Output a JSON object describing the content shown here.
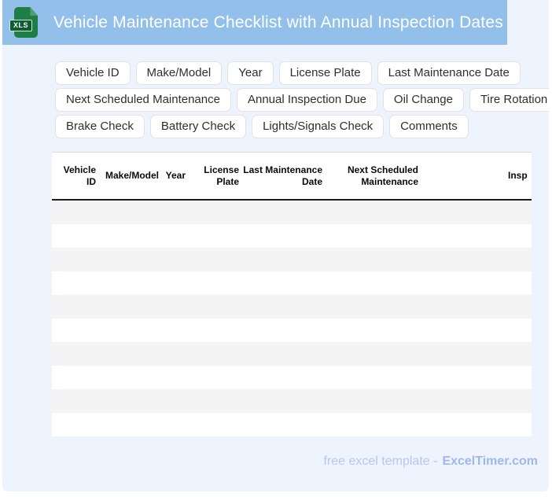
{
  "header": {
    "title": "Vehicle Maintenance Checklist with Annual Inspection Dates",
    "bar_color": "#93c0ea",
    "file_icon": {
      "label": "XLS",
      "file_color": "#1e7e45",
      "badge_color": "#0d5c33"
    }
  },
  "field_chips": {
    "rows": [
      [
        "Vehicle ID",
        "Make/Model",
        "Year",
        "License Plate",
        "Last Maintenance Date"
      ],
      [
        "Next Scheduled Maintenance",
        "Annual Inspection Due",
        "Oil Change",
        "Tire Rotation"
      ],
      [
        "Brake Check",
        "Battery Check",
        "Lights/Signals Check",
        "Comments"
      ]
    ]
  },
  "table": {
    "columns": [
      "Vehicle ID",
      "Make/Model",
      "Year",
      "License Plate",
      "Last Maintenance Date",
      "Next Scheduled Maintenance",
      "Insp"
    ],
    "visible_empty_rows": 10,
    "stripe_color": "#f4f4f4"
  },
  "footer": {
    "prefix": "free excel template -",
    "brand": "ExcelTimer.com"
  },
  "colors": {
    "card_background": "#edf4fd",
    "page_background": "#ffffff"
  }
}
